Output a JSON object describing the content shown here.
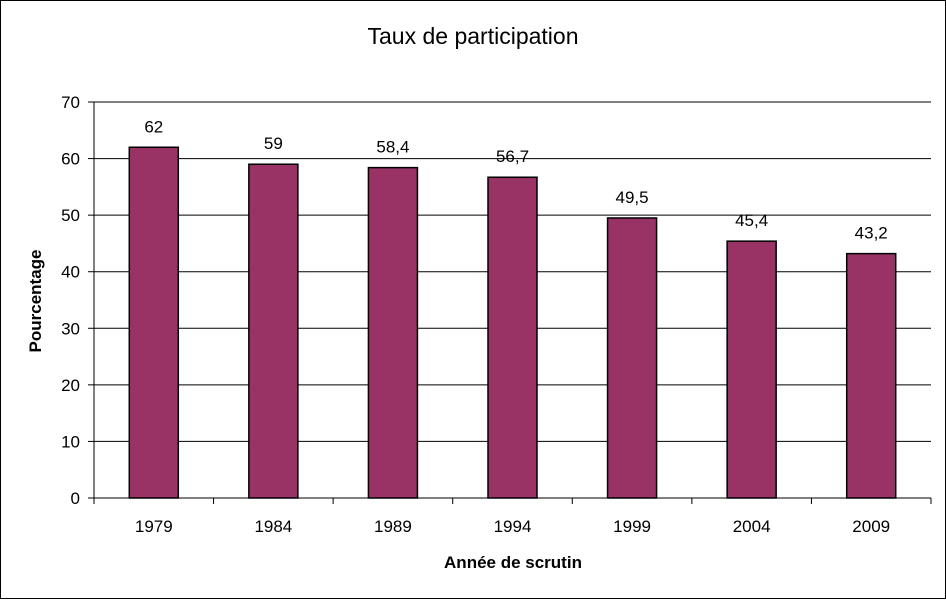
{
  "chart_data": {
    "type": "bar",
    "title": "Taux de participation",
    "xlabel": "Année de scrutin",
    "ylabel": "Pourcentage",
    "categories": [
      "1979",
      "1984",
      "1989",
      "1994",
      "1999",
      "2004",
      "2009"
    ],
    "values": [
      62,
      59,
      58.4,
      56.7,
      49.5,
      45.4,
      43.2
    ],
    "data_labels": [
      "62",
      "59",
      "58,4",
      "56,7",
      "49,5",
      "45,4",
      "43,2"
    ],
    "ylim": [
      0,
      70
    ],
    "yticks": [
      "0",
      "10",
      "20",
      "30",
      "40",
      "50",
      "60",
      "70"
    ],
    "grid": true,
    "legend": "none",
    "bar_color": "#993366"
  }
}
